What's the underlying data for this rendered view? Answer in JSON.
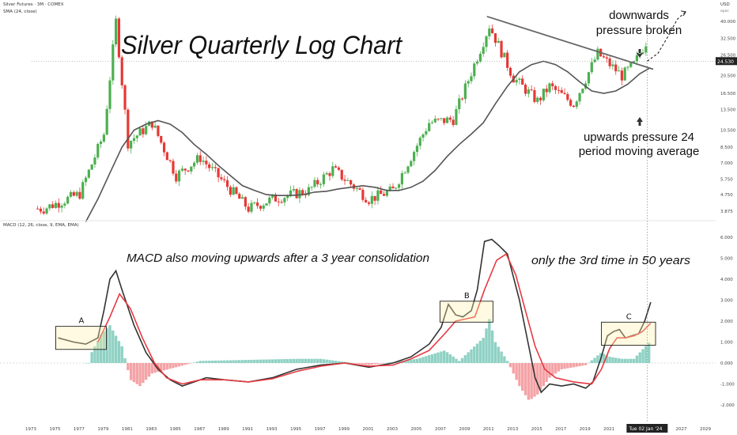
{
  "header": {
    "symbol": "Silver Futures · 3M · COMEX",
    "indicator": "SMA (24, close)",
    "currency": "USD",
    "currency_sub": "epoc"
  },
  "macd_header": "MACD (12, 26, close, 9, EMA, EMA)",
  "colors": {
    "up": "#4caf50",
    "down": "#e53935",
    "sma": "#555555",
    "macd": "#333333",
    "signal": "#e53940",
    "hist_pos": "#8fd1c4",
    "hist_neg": "#f4a3a6",
    "price_tag": "#222222"
  },
  "annotations": {
    "title": "Silver Quarterly Log Chart",
    "downwards": [
      "downwards",
      "pressure broken"
    ],
    "upwards": [
      "upwards pressure 24",
      "period moving average"
    ],
    "macd_note": "MACD also moving upwards after a 3 year consolidation",
    "third_time": "only the 3rd time in 50 years",
    "box_a": "A",
    "box_b": "B",
    "box_c": "C"
  },
  "price_tag": "24.530",
  "date_tag": "Tue 02 Jan '24",
  "chart_data": [
    {
      "type": "candlestick",
      "title": "Silver Futures · 3M · COMEX",
      "scale": "log",
      "y_ticks": [
        "3.875",
        "4.750",
        "5.750",
        "7.000",
        "8.500",
        "10.500",
        "13.500",
        "16.500",
        "20.500",
        "26.500",
        "32.500",
        "40.000"
      ],
      "x_ticks": [
        "1973",
        "1975",
        "1977",
        "1979",
        "1981",
        "1983",
        "1985",
        "1987",
        "1989",
        "1991",
        "1993",
        "1995",
        "1997",
        "1999",
        "2001",
        "2003",
        "2005",
        "2007",
        "2009",
        "2011",
        "2013",
        "2015",
        "2017",
        "2019",
        "2021",
        "2023",
        "2025",
        "2027",
        "2029"
      ],
      "series": [
        {
          "name": "SMA (24, close)",
          "type": "line",
          "points": [
            [
              1977.5,
              3.4
            ],
            [
              1978.5,
              4.5
            ],
            [
              1979.5,
              6.2
            ],
            [
              1980.5,
              8.5
            ],
            [
              1981.5,
              10.5
            ],
            [
              1982.5,
              11.3
            ],
            [
              1983.5,
              11.8
            ],
            [
              1984.5,
              11.3
            ],
            [
              1985.5,
              10.2
            ],
            [
              1986.5,
              8.8
            ],
            [
              1987.5,
              7.8
            ],
            [
              1988.5,
              6.8
            ],
            [
              1989.5,
              6.0
            ],
            [
              1990.5,
              5.3
            ],
            [
              1991.5,
              5.0
            ],
            [
              1992.5,
              4.75
            ],
            [
              1993.5,
              4.7
            ],
            [
              1994.5,
              4.7
            ],
            [
              1995.5,
              4.75
            ],
            [
              1996.5,
              4.9
            ],
            [
              1997.5,
              4.95
            ],
            [
              1998.5,
              5.1
            ],
            [
              1999.5,
              5.2
            ],
            [
              2000.5,
              5.3
            ],
            [
              2001.5,
              5.2
            ],
            [
              2002.5,
              5.0
            ],
            [
              2003.5,
              5.0
            ],
            [
              2004.5,
              5.2
            ],
            [
              2005.5,
              5.6
            ],
            [
              2006.5,
              6.4
            ],
            [
              2007.5,
              7.6
            ],
            [
              2008.5,
              8.8
            ],
            [
              2009.5,
              10.0
            ],
            [
              2010.5,
              11.5
            ],
            [
              2011.5,
              14.5
            ],
            [
              2012.5,
              18.0
            ],
            [
              2013.5,
              21.5
            ],
            [
              2014.5,
              23.5
            ],
            [
              2015.5,
              24.5
            ],
            [
              2016.5,
              23.5
            ],
            [
              2017.5,
              21.5
            ],
            [
              2018.5,
              19.0
            ],
            [
              2019.5,
              17.0
            ],
            [
              2020.5,
              16.5
            ],
            [
              2021.5,
              17.0
            ],
            [
              2022.5,
              18.5
            ],
            [
              2023.5,
              21.0
            ],
            [
              2024.3,
              22.5
            ]
          ]
        },
        {
          "name": "Resistance",
          "type": "line",
          "points": [
            [
              2010.8,
              42.5
            ],
            [
              2024.6,
              22.2
            ]
          ]
        },
        {
          "name": "Projection",
          "type": "line",
          "points": [
            [
              2024.1,
              24.5
            ],
            [
              2025.0,
              27.0
            ],
            [
              2025.8,
              33.0
            ],
            [
              2026.6,
              41.0
            ],
            [
              2027.3,
              45.0
            ]
          ]
        }
      ],
      "candles_description": [
        [
          1974,
          4.0
        ],
        [
          1977,
          4.8
        ],
        [
          1979,
          10.0
        ],
        [
          1980,
          40.0
        ],
        [
          1981,
          9.0
        ],
        [
          1983,
          11.5
        ],
        [
          1985,
          6.0
        ],
        [
          1987,
          7.5
        ],
        [
          1991,
          4.0
        ],
        [
          1993,
          4.5
        ],
        [
          1996,
          5.0
        ],
        [
          1998,
          6.5
        ],
        [
          2001,
          4.5
        ],
        [
          2003,
          5.0
        ],
        [
          2006,
          11.5
        ],
        [
          2008,
          12.0
        ],
        [
          2011,
          38.0
        ],
        [
          2013,
          20.0
        ],
        [
          2015,
          15.0
        ],
        [
          2016,
          18.0
        ],
        [
          2018,
          14.5
        ],
        [
          2020,
          27.0
        ],
        [
          2022,
          20.5
        ],
        [
          2023,
          23.5
        ],
        [
          2024,
          31.0
        ]
      ],
      "current_price": 24.53
    },
    {
      "type": "line",
      "title": "MACD (12, 26, close, 9, EMA, EMA)",
      "y_ticks": [
        "6.000",
        "5.000",
        "4.000",
        "3.000",
        "2.000",
        "1.000",
        "0.000",
        "-1.000",
        "-2.000"
      ],
      "ylim": [
        -2.3,
        6.3
      ],
      "series": [
        {
          "name": "MACD",
          "points": [
            [
              1975.2,
              1.2
            ],
            [
              1976.5,
              1.0
            ],
            [
              1977.5,
              0.9
            ],
            [
              1978.5,
              1.2
            ],
            [
              1979.0,
              2.5
            ],
            [
              1979.5,
              4.0
            ],
            [
              1980.0,
              4.4
            ],
            [
              1980.5,
              3.5
            ],
            [
              1981.5,
              1.8
            ],
            [
              1982.5,
              0.5
            ],
            [
              1983.5,
              -0.3
            ],
            [
              1984.5,
              -0.8
            ],
            [
              1985.5,
              -1.1
            ],
            [
              1986.5,
              -0.9
            ],
            [
              1987.5,
              -0.7
            ],
            [
              1989.0,
              -0.8
            ],
            [
              1991.0,
              -0.9
            ],
            [
              1993.0,
              -0.7
            ],
            [
              1995.0,
              -0.3
            ],
            [
              1997.0,
              -0.1
            ],
            [
              1999.0,
              0.0
            ],
            [
              2001.0,
              -0.2
            ],
            [
              2003.0,
              0.0
            ],
            [
              2004.5,
              0.3
            ],
            [
              2006.0,
              0.9
            ],
            [
              2007.0,
              1.7
            ],
            [
              2007.6,
              2.8
            ],
            [
              2008.2,
              2.3
            ],
            [
              2008.8,
              2.2
            ],
            [
              2009.5,
              2.5
            ],
            [
              2010.0,
              3.5
            ],
            [
              2010.6,
              5.8
            ],
            [
              2011.2,
              5.9
            ],
            [
              2011.8,
              5.6
            ],
            [
              2012.5,
              5.2
            ],
            [
              2013.5,
              3.0
            ],
            [
              2014.2,
              1.0
            ],
            [
              2014.8,
              -0.7
            ],
            [
              2015.3,
              -1.4
            ],
            [
              2016.0,
              -1.0
            ],
            [
              2017.0,
              -1.1
            ],
            [
              2018.0,
              -1.0
            ],
            [
              2019.0,
              -1.2
            ],
            [
              2019.6,
              -0.9
            ],
            [
              2020.3,
              0.3
            ],
            [
              2020.8,
              1.3
            ],
            [
              2021.3,
              1.5
            ],
            [
              2021.8,
              1.6
            ],
            [
              2022.3,
              1.2
            ],
            [
              2022.8,
              1.3
            ],
            [
              2023.4,
              1.4
            ],
            [
              2023.9,
              2.0
            ],
            [
              2024.4,
              2.9
            ]
          ]
        },
        {
          "name": "Signal",
          "points": [
            [
              1978.5,
              1.0
            ],
            [
              1979.5,
              2.2
            ],
            [
              1980.3,
              3.3
            ],
            [
              1981.2,
              2.6
            ],
            [
              1982.2,
              1.2
            ],
            [
              1983.2,
              0.0
            ],
            [
              1984.2,
              -0.7
            ],
            [
              1985.5,
              -1.0
            ],
            [
              1987.0,
              -0.8
            ],
            [
              1989.0,
              -0.8
            ],
            [
              1991.0,
              -0.9
            ],
            [
              1993.0,
              -0.75
            ],
            [
              1995.0,
              -0.4
            ],
            [
              1997.0,
              -0.15
            ],
            [
              1999.0,
              0.0
            ],
            [
              2001.0,
              -0.15
            ],
            [
              2003.0,
              -0.1
            ],
            [
              2004.5,
              0.2
            ],
            [
              2006.0,
              0.6
            ],
            [
              2007.3,
              1.4
            ],
            [
              2008.2,
              2.0
            ],
            [
              2009.0,
              2.1
            ],
            [
              2009.8,
              2.2
            ],
            [
              2010.6,
              3.5
            ],
            [
              2011.6,
              4.9
            ],
            [
              2012.4,
              5.2
            ],
            [
              2013.2,
              4.2
            ],
            [
              2014.0,
              2.5
            ],
            [
              2014.8,
              0.8
            ],
            [
              2015.6,
              -0.3
            ],
            [
              2016.5,
              -0.7
            ],
            [
              2018.0,
              -0.9
            ],
            [
              2019.5,
              -1.0
            ],
            [
              2020.3,
              -0.3
            ],
            [
              2021.0,
              0.7
            ],
            [
              2021.6,
              1.2
            ],
            [
              2022.3,
              1.2
            ],
            [
              2023.0,
              1.3
            ],
            [
              2023.7,
              1.5
            ],
            [
              2024.4,
              1.9
            ]
          ]
        },
        {
          "name": "Histogram",
          "type": "bar",
          "points": [
            [
              1977.8,
              0.3
            ],
            [
              1978.8,
              1.4
            ],
            [
              1979.5,
              1.8
            ],
            [
              1980.5,
              0.8
            ],
            [
              1981.2,
              -0.8
            ],
            [
              1982.0,
              -1.1
            ],
            [
              1983.0,
              -0.5
            ],
            [
              1985.0,
              -0.2
            ],
            [
              1987.0,
              0.1
            ],
            [
              1995.0,
              0.2
            ],
            [
              1997.0,
              0.2
            ],
            [
              2001.0,
              -0.1
            ],
            [
              2005.0,
              0.2
            ],
            [
              2007.3,
              0.6
            ],
            [
              2008.5,
              0.1
            ],
            [
              2010.5,
              1.2
            ],
            [
              2011.0,
              2.1
            ],
            [
              2011.5,
              1.0
            ],
            [
              2012.5,
              0.1
            ],
            [
              2013.5,
              -1.1
            ],
            [
              2014.3,
              -1.8
            ],
            [
              2015.0,
              -1.5
            ],
            [
              2016.0,
              -0.7
            ],
            [
              2017.0,
              -0.3
            ],
            [
              2019.0,
              -0.1
            ],
            [
              2020.3,
              0.5
            ],
            [
              2021.0,
              0.3
            ],
            [
              2022.0,
              0.2
            ],
            [
              2023.0,
              0.2
            ],
            [
              2024.3,
              1.0
            ]
          ]
        }
      ]
    }
  ]
}
